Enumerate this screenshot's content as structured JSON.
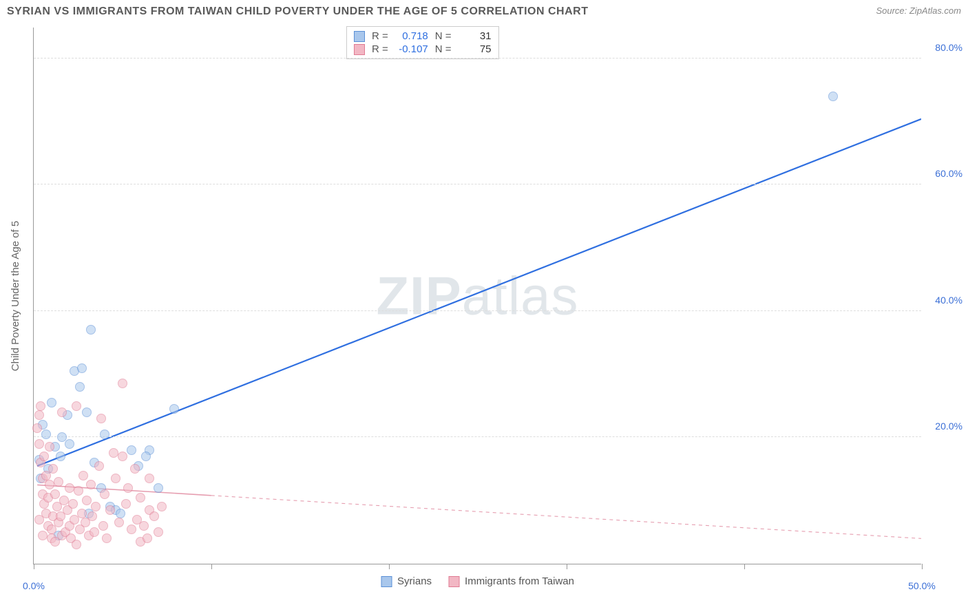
{
  "header": {
    "title": "SYRIAN VS IMMIGRANTS FROM TAIWAN CHILD POVERTY UNDER THE AGE OF 5 CORRELATION CHART",
    "source_prefix": "Source: ",
    "source_name": "ZipAtlas.com"
  },
  "watermark": {
    "part1": "ZIP",
    "part2": "atlas"
  },
  "axes": {
    "y_label": "Child Poverty Under the Age of 5",
    "xlim": [
      0,
      50
    ],
    "ylim": [
      0,
      85
    ],
    "x_ticks": [
      0,
      10,
      20,
      30,
      40,
      50
    ],
    "x_tick_labels_visible": {
      "0": "0.0%",
      "50": "50.0%"
    },
    "y_ticks": [
      20,
      40,
      60,
      80
    ],
    "y_tick_labels": {
      "20": "20.0%",
      "40": "40.0%",
      "60": "60.0%",
      "80": "80.0%"
    },
    "grid_color": "#dddddd",
    "axis_color": "#999999",
    "tick_label_color": "#3b6fd6",
    "y_axis_text_color": "#666666"
  },
  "legend_stats": {
    "rows": [
      {
        "swatch_fill": "#a9c7ec",
        "swatch_border": "#5a8fd6",
        "r_label": "R =",
        "r_value": "0.718",
        "r_color": "#2f6fe0",
        "n_label": "N =",
        "n_value": "31",
        "n_color": "#333333"
      },
      {
        "swatch_fill": "#f2b7c4",
        "swatch_border": "#e07a92",
        "r_label": "R =",
        "r_value": "-0.107",
        "r_color": "#2f6fe0",
        "n_label": "N =",
        "n_value": "75",
        "n_color": "#333333"
      }
    ]
  },
  "series_legend": {
    "items": [
      {
        "swatch_fill": "#a9c7ec",
        "swatch_border": "#5a8fd6",
        "label": "Syrians"
      },
      {
        "swatch_fill": "#f2b7c4",
        "swatch_border": "#e07a92",
        "label": "Immigrants from Taiwan"
      }
    ]
  },
  "chart": {
    "type": "scatter",
    "background_color": "#ffffff",
    "marker_radius": 7,
    "marker_opacity": 0.55,
    "series": [
      {
        "name": "Syrians",
        "fill": "#a9c7ec",
        "stroke": "#5a8fd6",
        "trend": {
          "x1": 0.2,
          "y1": 15.5,
          "x2": 50,
          "y2": 70.5,
          "color": "#2f6fe0",
          "width": 2.2,
          "dash": "none"
        },
        "points": [
          [
            0.3,
            16.5
          ],
          [
            0.4,
            13.5
          ],
          [
            0.5,
            22.0
          ],
          [
            0.7,
            20.5
          ],
          [
            1.0,
            25.5
          ],
          [
            1.2,
            18.5
          ],
          [
            1.5,
            17.0
          ],
          [
            1.6,
            20.0
          ],
          [
            1.9,
            23.5
          ],
          [
            2.0,
            19.0
          ],
          [
            2.3,
            30.5
          ],
          [
            2.7,
            31.0
          ],
          [
            3.0,
            24.0
          ],
          [
            3.1,
            8.0
          ],
          [
            3.2,
            37.0
          ],
          [
            3.4,
            16.0
          ],
          [
            3.8,
            12.0
          ],
          [
            4.0,
            20.5
          ],
          [
            4.3,
            9.0
          ],
          [
            4.6,
            8.5
          ],
          [
            4.9,
            8.0
          ],
          [
            5.5,
            18.0
          ],
          [
            5.9,
            15.5
          ],
          [
            6.5,
            18.0
          ],
          [
            7.0,
            12.0
          ],
          [
            7.9,
            24.5
          ],
          [
            6.3,
            17.0
          ],
          [
            2.6,
            28.0
          ],
          [
            0.8,
            15.0
          ],
          [
            1.4,
            4.5
          ],
          [
            45.0,
            74.0
          ]
        ]
      },
      {
        "name": "Taiwan",
        "fill": "#f2b7c4",
        "stroke": "#e07a92",
        "trend": {
          "x1": 0.2,
          "y1": 12.5,
          "x2": 50,
          "y2": 4.0,
          "color": "#e69eb0",
          "width": 1.6,
          "dash": "5,5",
          "solid_until_x": 10
        },
        "points": [
          [
            0.2,
            21.5
          ],
          [
            0.3,
            19.0
          ],
          [
            0.3,
            23.5
          ],
          [
            0.4,
            16.0
          ],
          [
            0.4,
            25.0
          ],
          [
            0.5,
            11.0
          ],
          [
            0.5,
            13.5
          ],
          [
            0.6,
            9.5
          ],
          [
            0.6,
            17.0
          ],
          [
            0.7,
            8.0
          ],
          [
            0.7,
            14.0
          ],
          [
            0.8,
            10.5
          ],
          [
            0.8,
            6.0
          ],
          [
            0.9,
            12.5
          ],
          [
            0.9,
            18.5
          ],
          [
            1.0,
            5.5
          ],
          [
            1.0,
            4.0
          ],
          [
            1.1,
            7.5
          ],
          [
            1.1,
            15.0
          ],
          [
            1.2,
            11.0
          ],
          [
            1.2,
            3.5
          ],
          [
            1.3,
            9.0
          ],
          [
            1.4,
            6.5
          ],
          [
            1.4,
            13.0
          ],
          [
            1.5,
            7.5
          ],
          [
            1.6,
            4.5
          ],
          [
            1.7,
            10.0
          ],
          [
            1.8,
            5.0
          ],
          [
            1.9,
            8.5
          ],
          [
            2.0,
            6.0
          ],
          [
            2.0,
            12.0
          ],
          [
            2.1,
            4.0
          ],
          [
            2.2,
            9.5
          ],
          [
            2.3,
            7.0
          ],
          [
            2.4,
            3.0
          ],
          [
            2.5,
            11.5
          ],
          [
            2.6,
            5.5
          ],
          [
            2.7,
            8.0
          ],
          [
            2.8,
            14.0
          ],
          [
            2.9,
            6.5
          ],
          [
            3.0,
            10.0
          ],
          [
            3.1,
            4.5
          ],
          [
            3.2,
            12.5
          ],
          [
            3.3,
            7.5
          ],
          [
            3.4,
            5.0
          ],
          [
            3.5,
            9.0
          ],
          [
            3.7,
            15.5
          ],
          [
            3.8,
            23.0
          ],
          [
            3.9,
            6.0
          ],
          [
            4.0,
            11.0
          ],
          [
            4.1,
            4.0
          ],
          [
            4.3,
            8.5
          ],
          [
            4.5,
            17.5
          ],
          [
            4.6,
            13.5
          ],
          [
            4.8,
            6.5
          ],
          [
            5.0,
            17.0
          ],
          [
            5.0,
            28.5
          ],
          [
            5.2,
            9.5
          ],
          [
            5.3,
            12.0
          ],
          [
            5.5,
            5.5
          ],
          [
            5.7,
            15.0
          ],
          [
            5.8,
            7.0
          ],
          [
            6.0,
            3.5
          ],
          [
            6.0,
            10.5
          ],
          [
            6.2,
            6.0
          ],
          [
            6.4,
            4.0
          ],
          [
            6.5,
            13.5
          ],
          [
            6.5,
            8.5
          ],
          [
            6.8,
            7.5
          ],
          [
            7.0,
            5.0
          ],
          [
            7.2,
            9.0
          ],
          [
            2.4,
            25.0
          ],
          [
            1.6,
            24.0
          ],
          [
            0.5,
            4.5
          ],
          [
            0.3,
            7.0
          ]
        ]
      }
    ]
  }
}
